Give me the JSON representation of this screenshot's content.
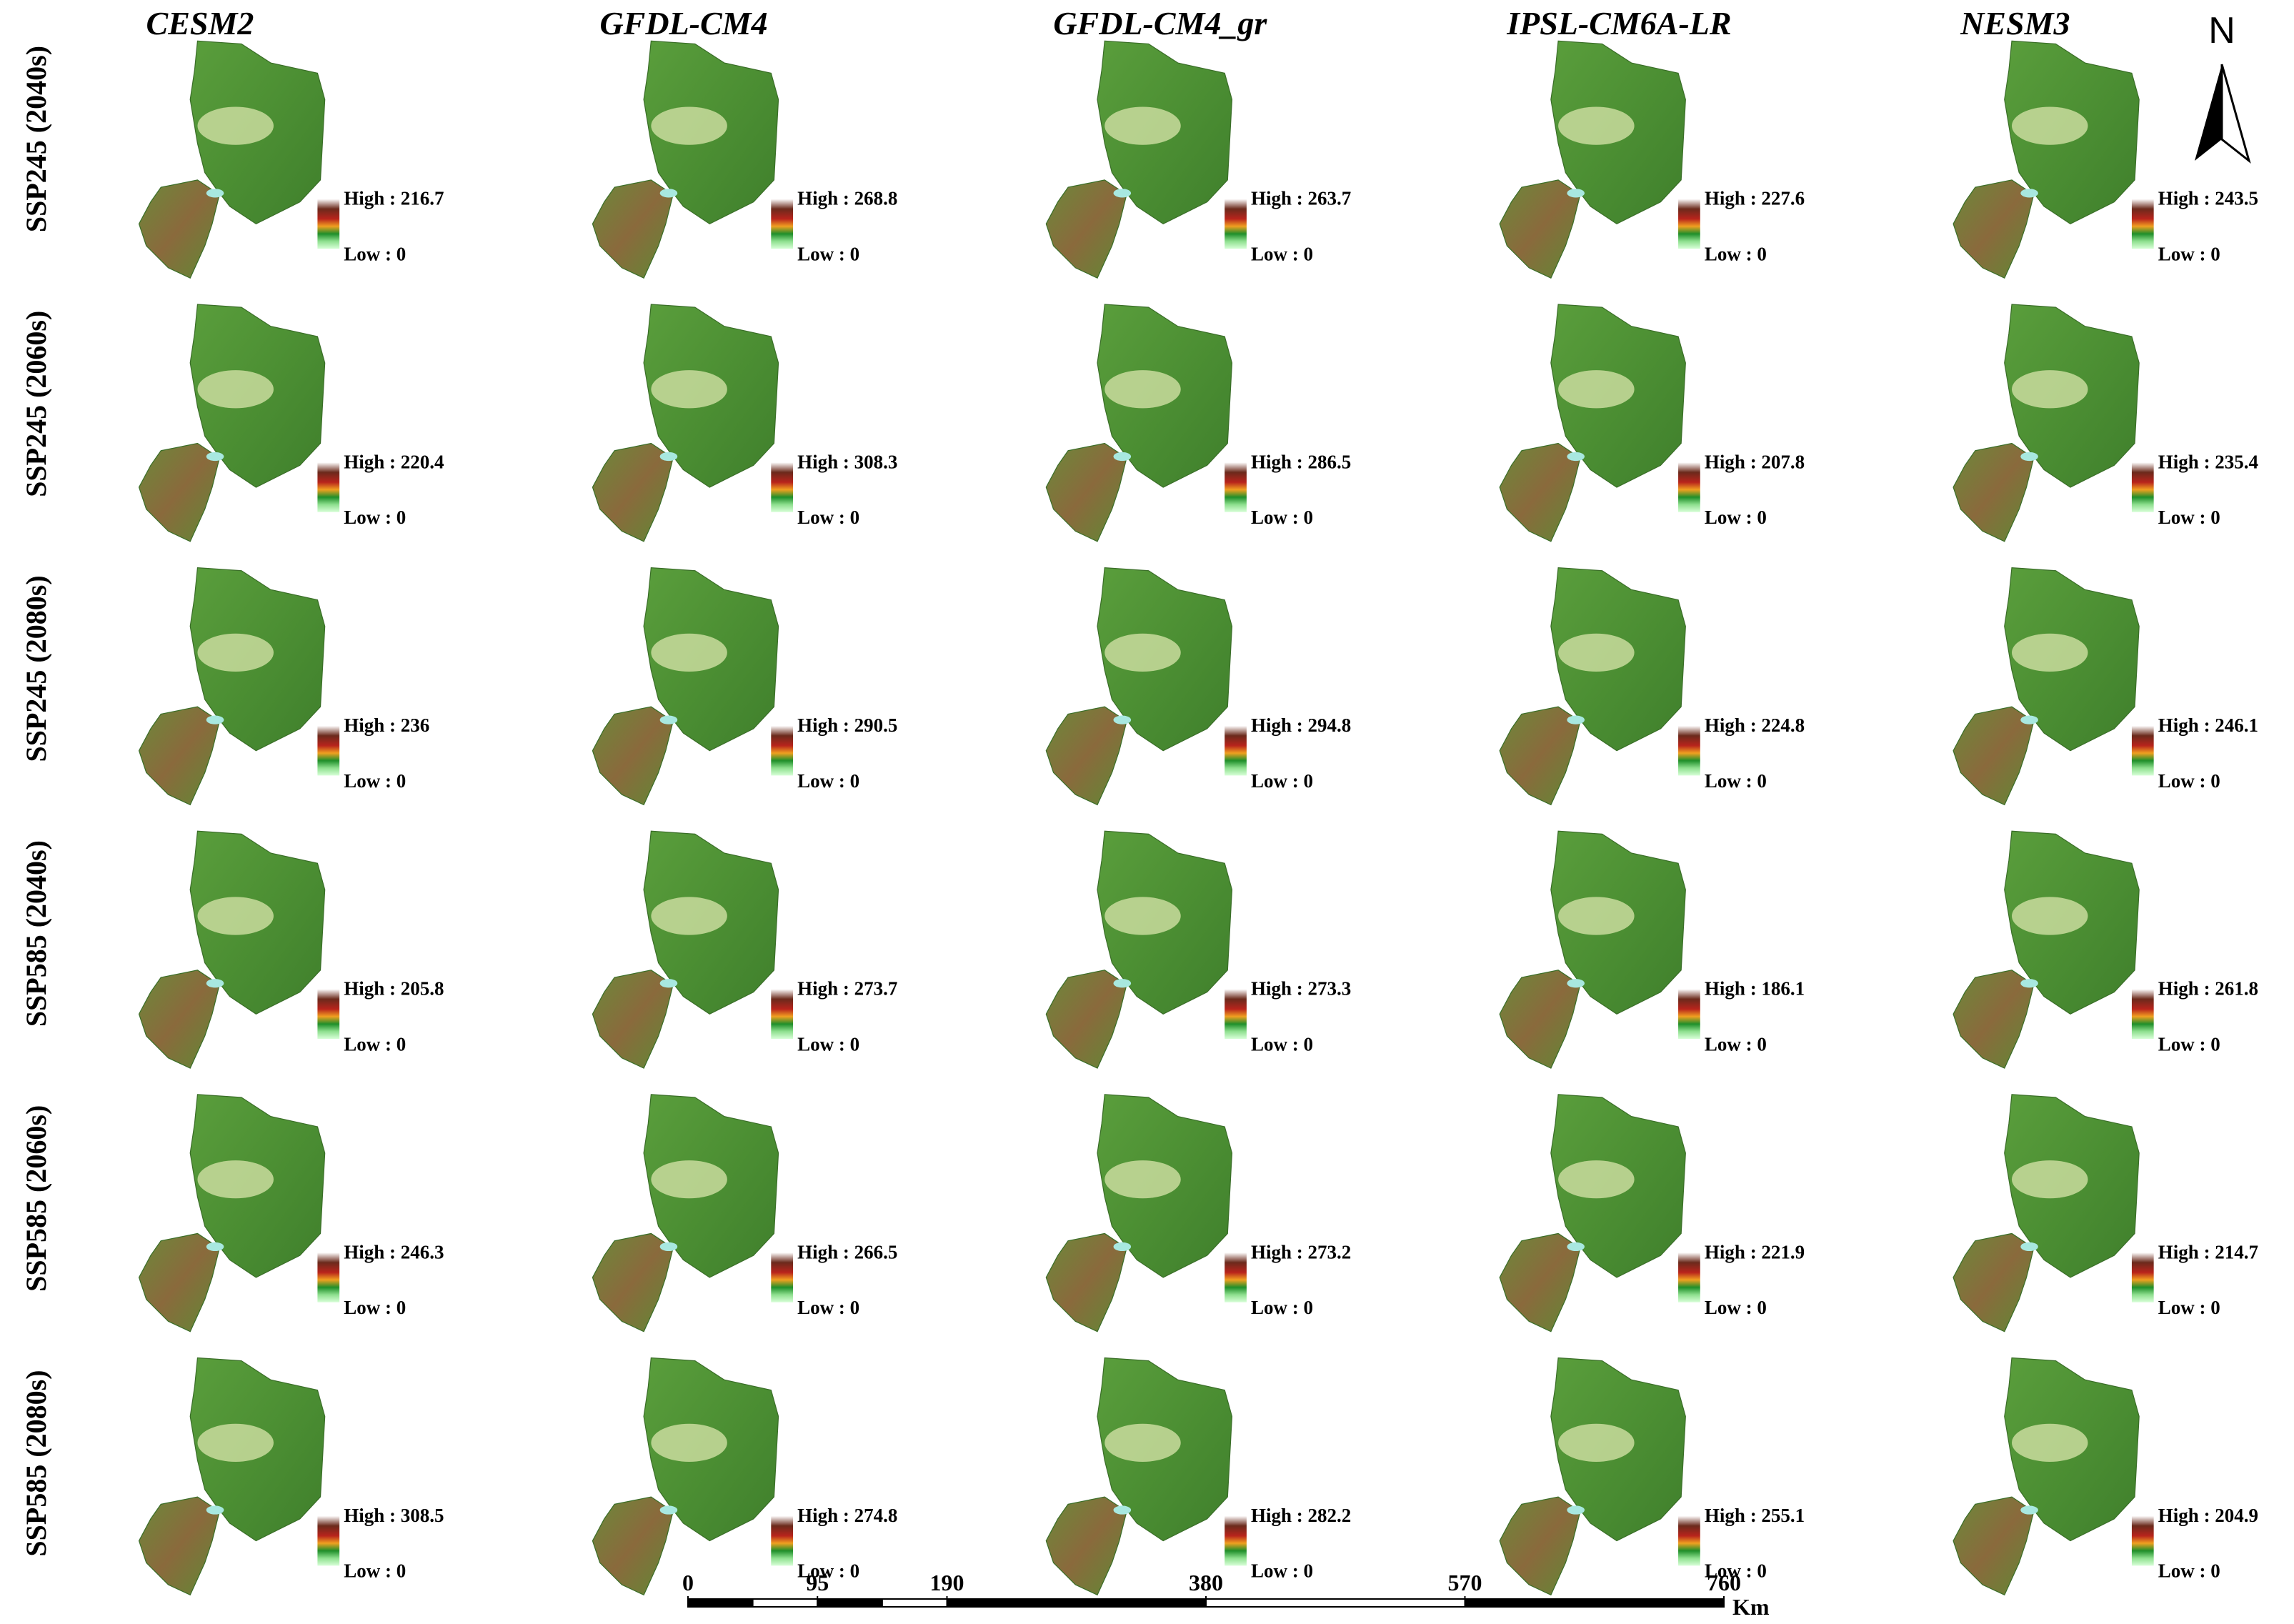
{
  "columns": [
    "CESM2",
    "GFDL-CM4",
    "GFDL-CM4_gr",
    "IPSL-CM6A-LR",
    "NESM3"
  ],
  "rows": [
    "SSP245 (2040s)",
    "SSP245 (2060s)",
    "SSP245 (2080s)",
    "SSP585 (2040s)",
    "SSP585 (2060s)",
    "SSP585 (2080s)"
  ],
  "cells": [
    [
      {
        "high": "High : 216.7",
        "low": "Low : 0"
      },
      {
        "high": "High : 268.8",
        "low": "Low : 0"
      },
      {
        "high": "High : 263.7",
        "low": "Low : 0"
      },
      {
        "high": "High : 227.6",
        "low": "Low : 0"
      },
      {
        "high": "High : 243.5",
        "low": "Low : 0"
      }
    ],
    [
      {
        "high": "High : 220.4",
        "low": "Low : 0"
      },
      {
        "high": "High : 308.3",
        "low": "Low : 0"
      },
      {
        "high": "High : 286.5",
        "low": "Low : 0"
      },
      {
        "high": "High : 207.8",
        "low": "Low : 0"
      },
      {
        "high": "High : 235.4",
        "low": "Low : 0"
      }
    ],
    [
      {
        "high": "High : 236",
        "low": "Low : 0"
      },
      {
        "high": "High : 290.5",
        "low": "Low : 0"
      },
      {
        "high": "High : 294.8",
        "low": "Low : 0"
      },
      {
        "high": "High : 224.8",
        "low": "Low : 0"
      },
      {
        "high": "High : 246.1",
        "low": "Low : 0"
      }
    ],
    [
      {
        "high": "High : 205.8",
        "low": "Low : 0"
      },
      {
        "high": "High : 273.7",
        "low": "Low : 0"
      },
      {
        "high": "High : 273.3",
        "low": "Low : 0"
      },
      {
        "high": "High : 186.1",
        "low": "Low : 0"
      },
      {
        "high": "High : 261.8",
        "low": "Low : 0"
      }
    ],
    [
      {
        "high": "High : 246.3",
        "low": "Low : 0"
      },
      {
        "high": "High : 266.5",
        "low": "Low : 0"
      },
      {
        "high": "High : 273.2",
        "low": "Low : 0"
      },
      {
        "high": "High : 221.9",
        "low": "Low : 0"
      },
      {
        "high": "High : 214.7",
        "low": "Low : 0"
      }
    ],
    [
      {
        "high": "High : 308.5",
        "low": "Low : 0"
      },
      {
        "high": "High : 274.8",
        "low": "Low : 0"
      },
      {
        "high": "High : 282.2",
        "low": "Low : 0"
      },
      {
        "high": "High : 255.1",
        "low": "Low : 0"
      },
      {
        "high": "High : 204.9",
        "low": "Low : 0"
      }
    ]
  ],
  "north_arrow": "N",
  "scale_bar": {
    "ticks": [
      0,
      95,
      190,
      380,
      570,
      760
    ],
    "unit": "Km"
  }
}
